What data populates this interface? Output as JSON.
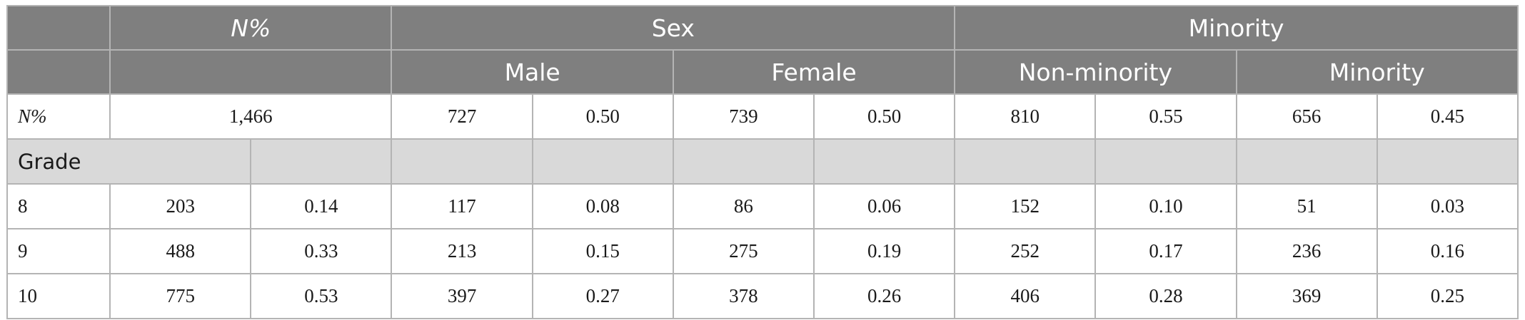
{
  "header": {
    "row1": {
      "blank": "",
      "n_pct": "N%",
      "sex": "Sex",
      "minority": "Minority"
    },
    "row2": {
      "blank": "",
      "n_pct_blank": "",
      "male": "Male",
      "female": "Female",
      "non_minority": "Non-minority",
      "minority": "Minority"
    }
  },
  "rows": {
    "total": {
      "label": "N%",
      "n": "1,466",
      "male_n": "727",
      "male_pct": "0.50",
      "female_n": "739",
      "female_pct": "0.50",
      "nonmin_n": "810",
      "nonmin_pct": "0.55",
      "min_n": "656",
      "min_pct": "0.45"
    },
    "section": {
      "label": "Grade"
    },
    "grades": [
      {
        "label": "8",
        "n": "203",
        "pct": "0.14",
        "male_n": "117",
        "male_pct": "0.08",
        "female_n": "86",
        "female_pct": "0.06",
        "nonmin_n": "152",
        "nonmin_pct": "0.10",
        "min_n": "51",
        "min_pct": "0.03"
      },
      {
        "label": "9",
        "n": "488",
        "pct": "0.33",
        "male_n": "213",
        "male_pct": "0.15",
        "female_n": "275",
        "female_pct": "0.19",
        "nonmin_n": "252",
        "nonmin_pct": "0.17",
        "min_n": "236",
        "min_pct": "0.16"
      },
      {
        "label": "10",
        "n": "775",
        "pct": "0.53",
        "male_n": "397",
        "male_pct": "0.27",
        "female_n": "378",
        "female_pct": "0.26",
        "nonmin_n": "406",
        "nonmin_pct": "0.28",
        "min_n": "369",
        "min_pct": "0.25"
      }
    ]
  }
}
